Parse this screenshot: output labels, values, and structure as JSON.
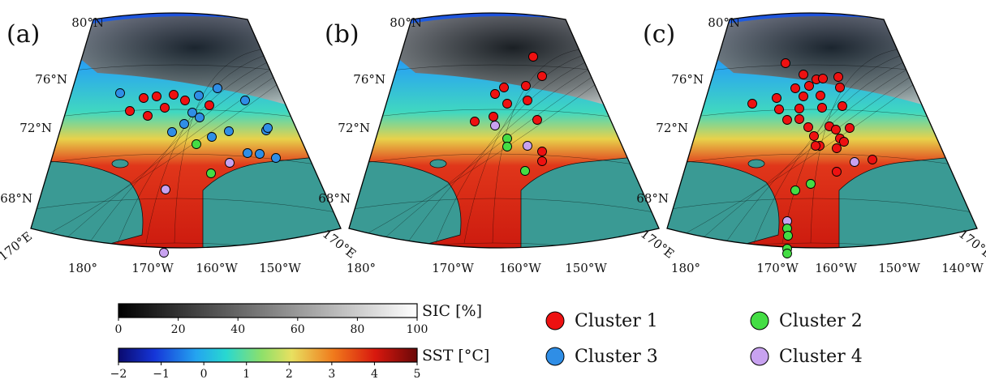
{
  "panels": [
    {
      "label": "(a)",
      "lat_labels": [
        "80°N",
        "76°N",
        "72°N",
        "68°N"
      ],
      "lon_labels": [
        "170°E",
        "180°",
        "170°W",
        "160°W",
        "150°W",
        "170°E"
      ]
    },
    {
      "label": "(b)",
      "lat_labels": [
        "80°N",
        "76°N",
        "72°N",
        "68°N"
      ],
      "lon_labels": [
        "180°",
        "170°W",
        "160°W",
        "150°W",
        "170°E"
      ]
    },
    {
      "label": "(c)",
      "lat_labels": [
        "80°N",
        "76°N",
        "72°N",
        "68°N"
      ],
      "lon_labels": [
        "180°",
        "170°W",
        "160°W",
        "150°W",
        "140°W",
        "170°E"
      ]
    }
  ],
  "colorbars": {
    "sic": {
      "label": "SIC [%]",
      "ticks": [
        "0",
        "20",
        "40",
        "60",
        "80",
        "100"
      ]
    },
    "sst": {
      "label": "SST [°C]",
      "ticks": [
        "−2",
        "−1",
        "0",
        "1",
        "2",
        "3",
        "4",
        "5"
      ]
    }
  },
  "legend": [
    {
      "label": "Cluster 1",
      "color": "#ee1111"
    },
    {
      "label": "Cluster 2",
      "color": "#44dd44"
    },
    {
      "label": "Cluster 3",
      "color": "#2f8ee6"
    },
    {
      "label": "Cluster 4",
      "color": "#c8a2f0"
    }
  ],
  "colors": {
    "land": "#3a9a94",
    "warm_water": "#c8140c",
    "coast": "#111111"
  }
}
